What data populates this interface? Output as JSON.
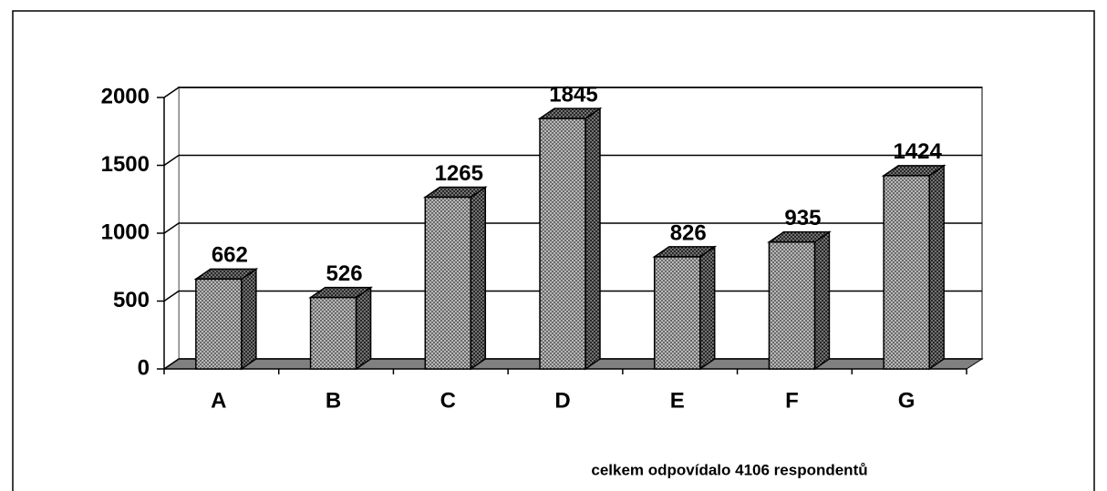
{
  "chart_data": {
    "type": "bar",
    "categories": [
      "A",
      "B",
      "C",
      "D",
      "E",
      "F",
      "G"
    ],
    "values": [
      662,
      526,
      1265,
      1845,
      826,
      935,
      1424
    ],
    "color": "#a8a8a8",
    "ylim": [
      0,
      2000
    ],
    "yticks": [
      0,
      500,
      1000,
      1500,
      2000
    ],
    "grid": true,
    "annotation": "celkem odpovídalo 4106 respondentů"
  }
}
